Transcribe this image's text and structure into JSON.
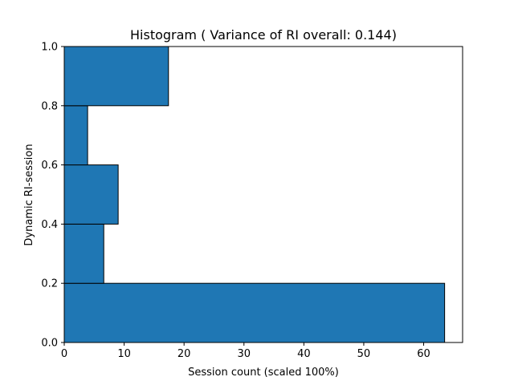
{
  "chart_data": {
    "type": "bar",
    "orientation": "horizontal",
    "title": "Histogram ( Variance of RI overall: 0.144)",
    "xlabel": "Session count (scaled 100%)",
    "ylabel": "Dynamic RI-session",
    "xlim": [
      0,
      66.5
    ],
    "ylim": [
      0.0,
      1.0
    ],
    "xticks": [
      0,
      10,
      20,
      30,
      40,
      50,
      60
    ],
    "yticks": [
      0.0,
      0.2,
      0.4,
      0.6,
      0.8,
      1.0
    ],
    "xtick_labels": [
      "0",
      "10",
      "20",
      "30",
      "40",
      "50",
      "60"
    ],
    "ytick_labels": [
      "0.0",
      "0.2",
      "0.4",
      "0.6",
      "0.8",
      "1.0"
    ],
    "bins": [
      {
        "y0": 0.0,
        "y1": 0.2,
        "value": 63.5
      },
      {
        "y0": 0.2,
        "y1": 0.4,
        "value": 6.6
      },
      {
        "y0": 0.4,
        "y1": 0.6,
        "value": 9.0
      },
      {
        "y0": 0.6,
        "y1": 0.8,
        "value": 3.9
      },
      {
        "y0": 0.8,
        "y1": 1.0,
        "value": 17.4
      }
    ],
    "bar_color": "#1f77b4",
    "edge_color": "#000000",
    "grid": false,
    "legend": "none"
  }
}
